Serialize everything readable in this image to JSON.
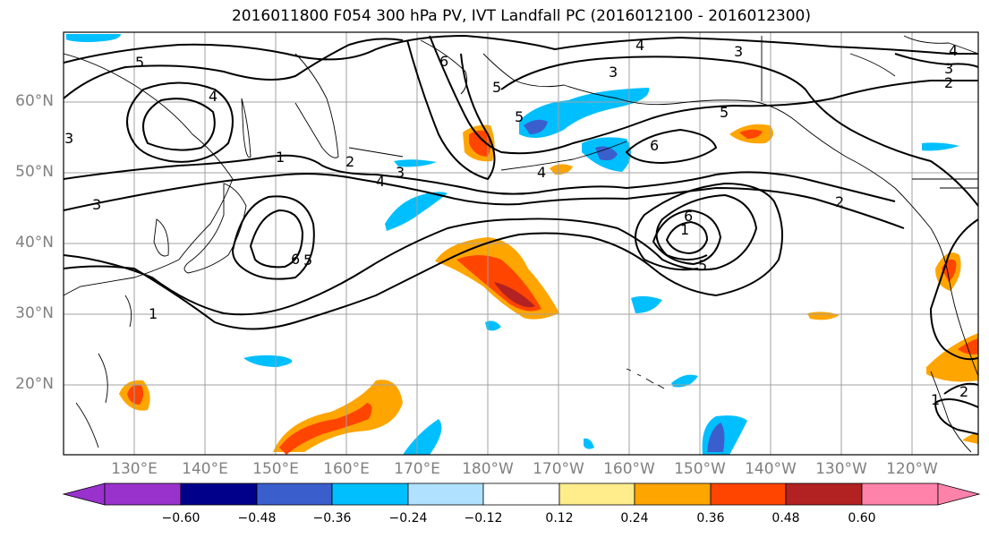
{
  "title": "2016011800 F054 300 hPa PV, IVT Landfall PC (2016012100 - 2016012300)",
  "map": {
    "lat_labels": [
      "60°N",
      "50°N",
      "40°N",
      "30°N",
      "20°N"
    ],
    "lon_labels": [
      "130°E",
      "140°E",
      "150°E",
      "160°E",
      "170°E",
      "180°W",
      "170°W",
      "160°W",
      "150°W",
      "140°W",
      "130°W",
      "120°W"
    ],
    "contour_labels": [
      "5",
      "4",
      "1",
      "2",
      "3",
      "4",
      "6",
      "5",
      "4",
      "3",
      "6",
      "5",
      "5",
      "4",
      "6",
      "1",
      "6",
      "5",
      "3",
      "2",
      "1",
      "3",
      "5",
      "3",
      "4",
      "2",
      "1",
      "3",
      "2"
    ],
    "colors": {
      "grid": "#a0a0a0",
      "coast": "#000000",
      "contour": "#000000"
    }
  },
  "colorbar": {
    "colors": [
      "#9932cc",
      "#00008b",
      "#3a5fcd",
      "#00bfff",
      "#b0e2ff",
      "#ffffff",
      "#ffec8b",
      "#ffa500",
      "#ff4500",
      "#b22222",
      "#ff82ab"
    ],
    "ticks": [
      "−0.60",
      "−0.48",
      "−0.36",
      "−0.24",
      "−0.12",
      "0.12",
      "0.24",
      "0.36",
      "0.48",
      "0.60"
    ]
  }
}
